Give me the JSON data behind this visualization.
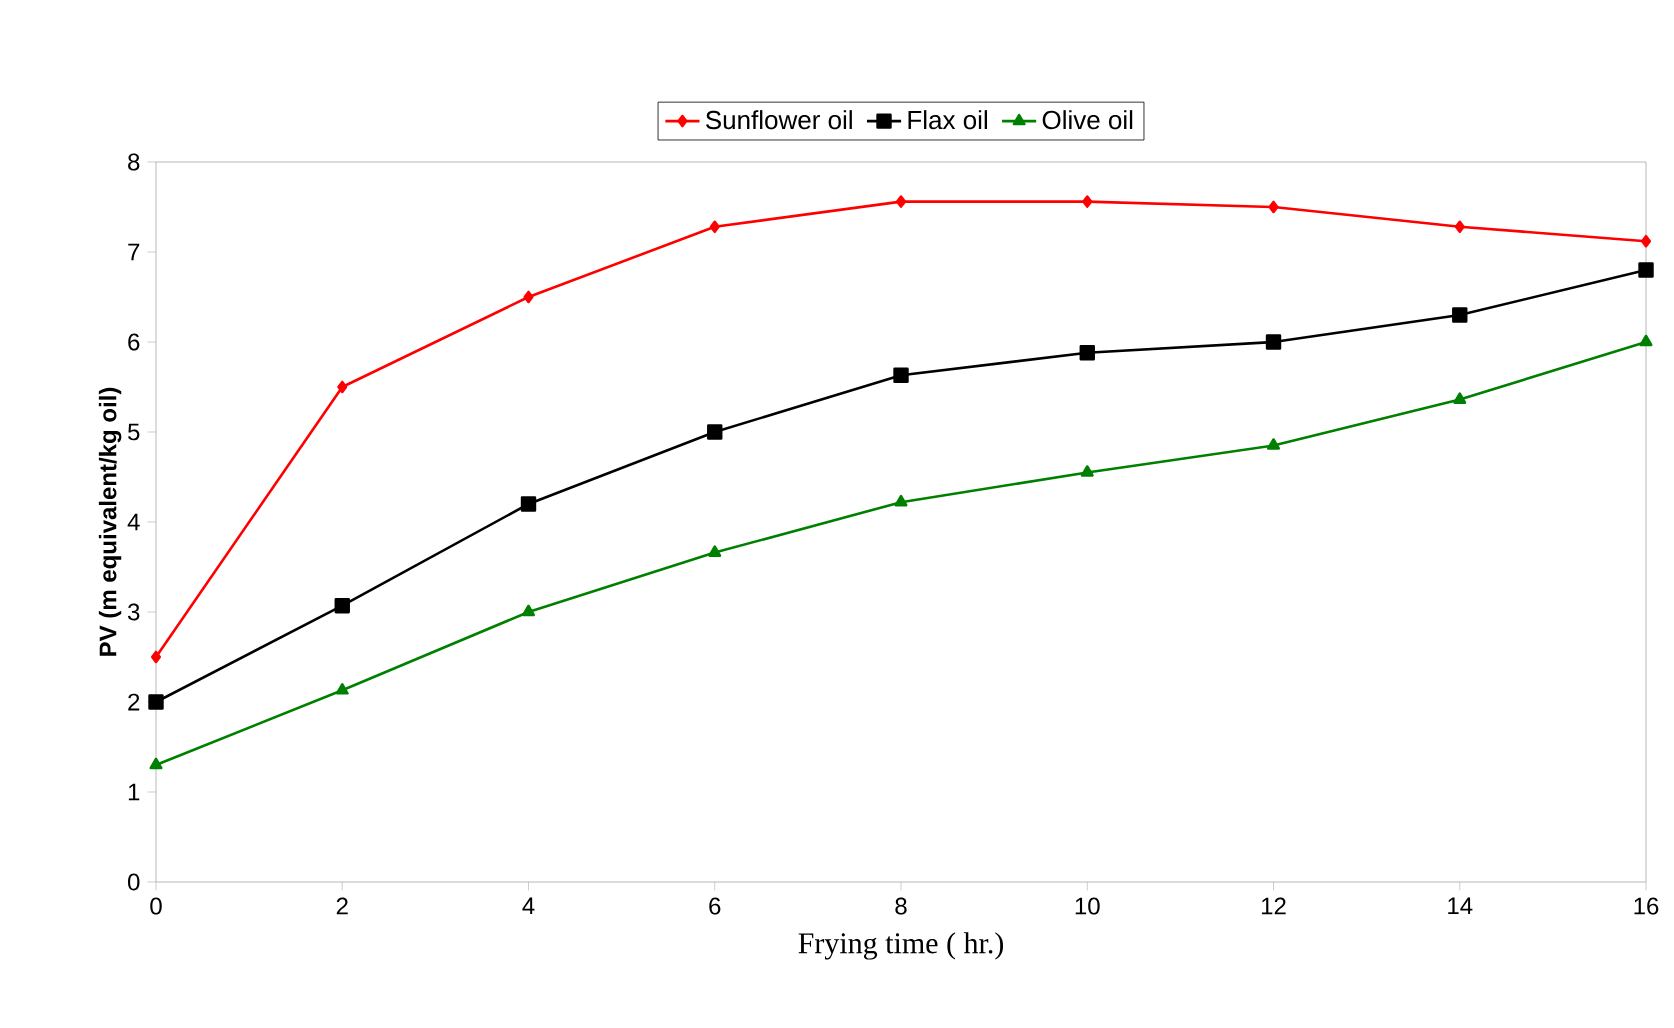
{
  "chart_data": {
    "type": "line",
    "xlabel": "Frying time ( hr.)",
    "ylabel": "PV (m equivalent/kg oil)",
    "x": [
      0,
      2,
      4,
      6,
      8,
      10,
      12,
      14,
      16
    ],
    "series": [
      {
        "name": "Sunflower oil",
        "color": "#ff0000",
        "marker": "diamond",
        "values": [
          2.5,
          5.5,
          6.5,
          7.28,
          7.56,
          7.56,
          7.5,
          7.28,
          7.12
        ]
      },
      {
        "name": "Flax oil",
        "color": "#000000",
        "marker": "square",
        "values": [
          2.0,
          3.07,
          4.2,
          5.0,
          5.63,
          5.88,
          6.0,
          6.3,
          6.8
        ]
      },
      {
        "name": "Olive oil",
        "color": "#008000",
        "marker": "triangle",
        "values": [
          1.3,
          2.13,
          3.0,
          3.66,
          4.22,
          4.55,
          4.85,
          5.36,
          6.0
        ]
      }
    ],
    "xlim": [
      0,
      16
    ],
    "xticks": [
      0,
      2,
      4,
      6,
      8,
      10,
      12,
      14,
      16
    ],
    "ylim": [
      0,
      8
    ],
    "yticks": [
      0,
      1,
      2,
      3,
      4,
      5,
      6,
      7,
      8
    ],
    "grid": false,
    "legend": "top"
  }
}
